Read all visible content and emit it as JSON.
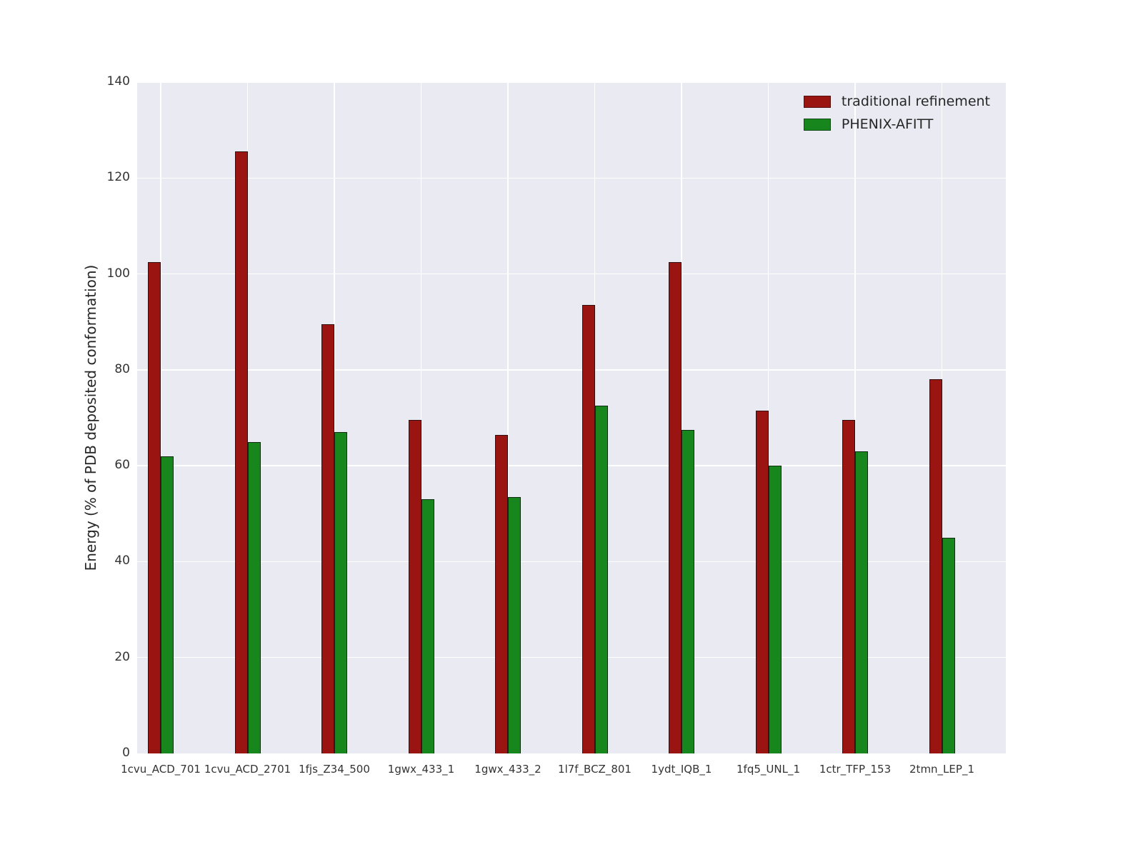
{
  "figure": {
    "background": "#ffffff",
    "axes_background": "#eaeaf2",
    "grid_color": "#ffffff",
    "text_color": "#262626"
  },
  "chart_data": {
    "type": "bar",
    "title": "",
    "xlabel": "",
    "ylabel": "Energy (% of PDB deposited conformation)",
    "ylim": [
      0,
      140
    ],
    "yticks": [
      0,
      20,
      40,
      60,
      80,
      100,
      120,
      140
    ],
    "grid": true,
    "legend_position": "upper right",
    "categories": [
      "1cvu_ACD_701",
      "1cvu_ACD_2701",
      "1fjs_Z34_500",
      "1gwx_433_1",
      "1gwx_433_2",
      "1l7f_BCZ_801",
      "1ydt_IQB_1",
      "1fq5_UNL_1",
      "1ctr_TFP_153",
      "2tmn_LEP_1"
    ],
    "series": [
      {
        "name": "traditional refinement",
        "color": "#9a1412",
        "values": [
          102.5,
          125.5,
          89.5,
          69.5,
          66.5,
          93.5,
          102.5,
          71.5,
          69.5,
          78
        ]
      },
      {
        "name": "PHENIX-AFITT",
        "color": "#17871d",
        "values": [
          62,
          65,
          67,
          53,
          53.5,
          72.5,
          67.5,
          60,
          63,
          45
        ]
      }
    ]
  }
}
